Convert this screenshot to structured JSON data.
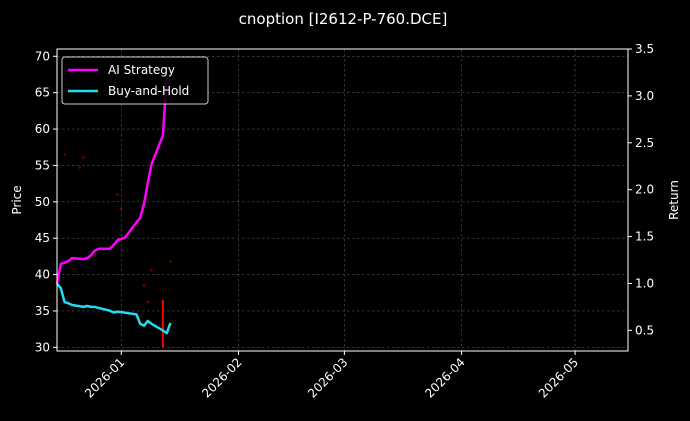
{
  "chart_data": {
    "type": "line",
    "title": "cnoption [I2612-P-760.DCE]",
    "xlabel": "",
    "ylabel": "Price",
    "y2label": "Return",
    "x_ticks": [
      "2026-01",
      "2026-02",
      "2026-03",
      "2026-04",
      "2026-05"
    ],
    "x_range": [
      "2025-12-15",
      "2026-05-15"
    ],
    "ylim": [
      29.5,
      71
    ],
    "y_ticks": [
      30,
      35,
      40,
      45,
      50,
      55,
      60,
      65,
      70
    ],
    "y2lim": [
      0.28,
      3.5
    ],
    "y2_ticks": [
      "0.5",
      "1.0",
      "1.5",
      "2.0",
      "2.5",
      "3.0",
      "3.5"
    ],
    "grid": true,
    "legend_position": "top-left",
    "colors": {
      "ai": "#ff00ff",
      "bh": "#22ddee",
      "marker": "#ff0000"
    },
    "series": [
      {
        "name": "AI Strategy",
        "axis": "return",
        "x": [
          "2025-12-15",
          "2025-12-16",
          "2025-12-17",
          "2025-12-18",
          "2025-12-19",
          "2025-12-22",
          "2025-12-23",
          "2025-12-24",
          "2025-12-25",
          "2025-12-26",
          "2025-12-29",
          "2025-12-30",
          "2025-12-31",
          "2026-01-02",
          "2026-01-05",
          "2026-01-06",
          "2026-01-07",
          "2026-01-08",
          "2026-01-09",
          "2026-01-12",
          "2026-01-13"
        ],
        "values": [
          1.0,
          1.21,
          1.22,
          1.24,
          1.27,
          1.26,
          1.27,
          1.3,
          1.35,
          1.37,
          1.37,
          1.41,
          1.46,
          1.49,
          1.65,
          1.7,
          1.85,
          2.07,
          2.27,
          2.58,
          3.2
        ]
      },
      {
        "name": "Buy-and-Hold",
        "axis": "return",
        "x": [
          "2025-12-15",
          "2025-12-16",
          "2025-12-17",
          "2025-12-18",
          "2025-12-19",
          "2025-12-22",
          "2025-12-23",
          "2025-12-24",
          "2025-12-25",
          "2025-12-26",
          "2025-12-29",
          "2025-12-30",
          "2025-12-31",
          "2026-01-05",
          "2026-01-06",
          "2026-01-07",
          "2026-01-08",
          "2026-01-09",
          "2026-01-12",
          "2026-01-13",
          "2026-01-14"
        ],
        "values": [
          1.0,
          0.95,
          0.8,
          0.79,
          0.77,
          0.75,
          0.76,
          0.75,
          0.75,
          0.74,
          0.71,
          0.69,
          0.7,
          0.67,
          0.57,
          0.55,
          0.6,
          0.57,
          0.5,
          0.47,
          0.58
        ]
      },
      {
        "name": "",
        "axis": "price",
        "type": "scatter",
        "x": [
          "2025-12-17",
          "2025-12-21",
          "2025-12-22",
          "2025-12-31",
          "2026-01-01",
          "2026-01-07",
          "2026-01-08",
          "2026-01-09",
          "2026-01-14"
        ],
        "values": [
          56.5,
          54.7,
          56.1,
          51.0,
          49.1,
          38.5,
          36.2,
          40.6,
          41.8
        ]
      },
      {
        "name": "",
        "axis": "price",
        "type": "bar",
        "x": [
          "2026-01-12"
        ],
        "values": [
          36.5
        ],
        "base": 30
      }
    ]
  }
}
